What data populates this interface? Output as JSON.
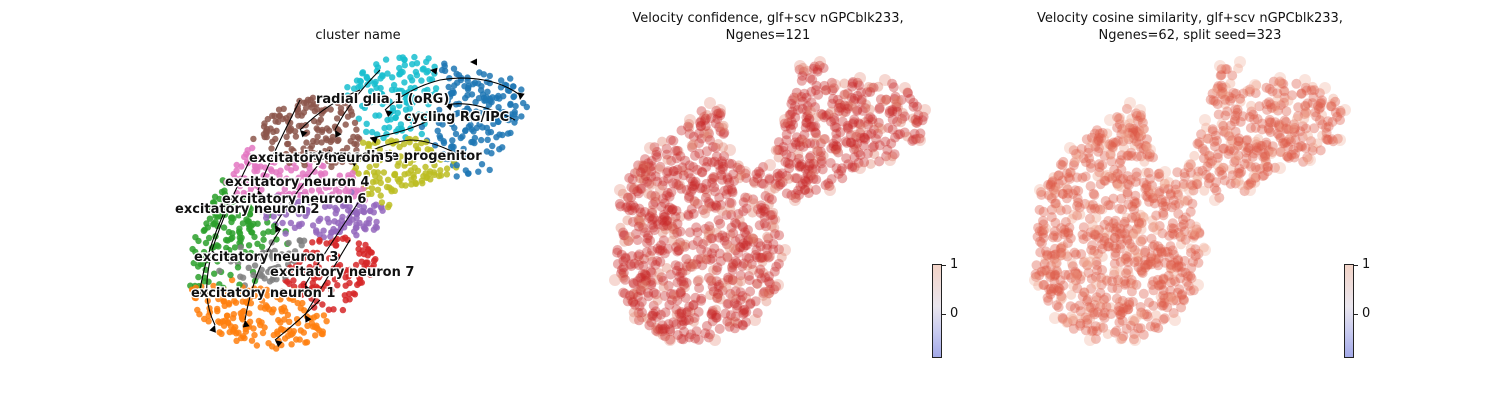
{
  "chart_data": [
    {
      "type": "scatter",
      "title": "cluster name",
      "description_type": "embedding colored by cluster with velocity streamlines",
      "clusters": [
        {
          "name": "radial glia 1 (oRG)",
          "color": "#17becf"
        },
        {
          "name": "cycling RG/IPC",
          "color": "#1f77b4"
        },
        {
          "name": "intermediate progenitor",
          "color": "#bcbd22"
        },
        {
          "name": "excitatory neuron 5",
          "color": "#8c564b"
        },
        {
          "name": "excitatory neuron 4",
          "color": "#e377c2"
        },
        {
          "name": "excitatory neuron 6",
          "color": "#9467bd"
        },
        {
          "name": "excitatory neuron 2",
          "color": "#2ca02c"
        },
        {
          "name": "excitatory neuron 3",
          "color": "#7f7f7f"
        },
        {
          "name": "excitatory neuron 7",
          "color": "#d62728"
        },
        {
          "name": "excitatory neuron 1",
          "color": "#ff7f0e"
        }
      ],
      "axis_visible": false,
      "streamlines": true
    },
    {
      "type": "scatter",
      "title": "Velocity confidence, glf+scv nGPCblk233,",
      "title_line2": "Ngenes=121",
      "colormap": "coolwarm",
      "dominant_color": "#c92b2b",
      "colorbar_ticks": [
        "1",
        "0"
      ],
      "axis_visible": false
    },
    {
      "type": "scatter",
      "title": "Velocity cosine similarity, glf+scv nGPCblk233,",
      "title_line2": "Ngenes=62, split seed=323",
      "colormap": "coolwarm",
      "dominant_color": "#de5a48",
      "colorbar_ticks": [
        "1",
        "0"
      ],
      "axis_visible": false
    }
  ]
}
